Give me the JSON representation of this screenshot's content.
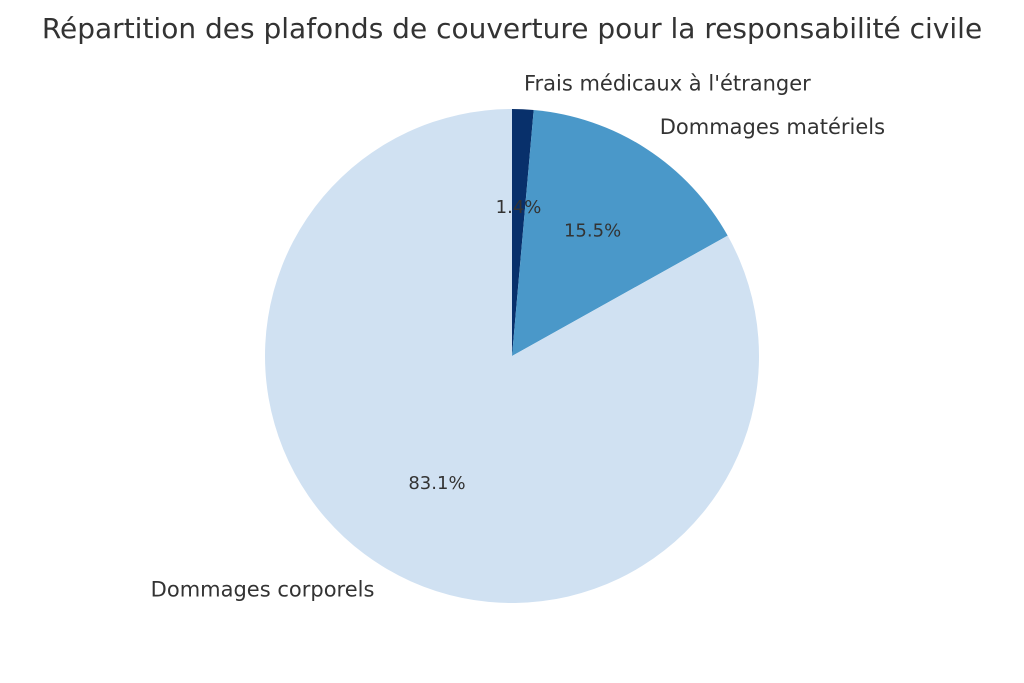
{
  "chart_data": {
    "type": "pie",
    "title": "Répartition des plafonds de couverture pour la responsabilité civile",
    "slices": [
      {
        "label": "Frais médicaux à l'étranger",
        "value": 1.4,
        "pct_label": "1.4%",
        "color": "#08306b"
      },
      {
        "label": "Dommages matériels",
        "value": 15.5,
        "pct_label": "15.5%",
        "color": "#4a98c9"
      },
      {
        "label": "Dommages corporels",
        "value": 83.1,
        "pct_label": "83.1%",
        "color": "#d0e1f2"
      }
    ],
    "start_angle_deg": 90,
    "direction": "clockwise"
  }
}
